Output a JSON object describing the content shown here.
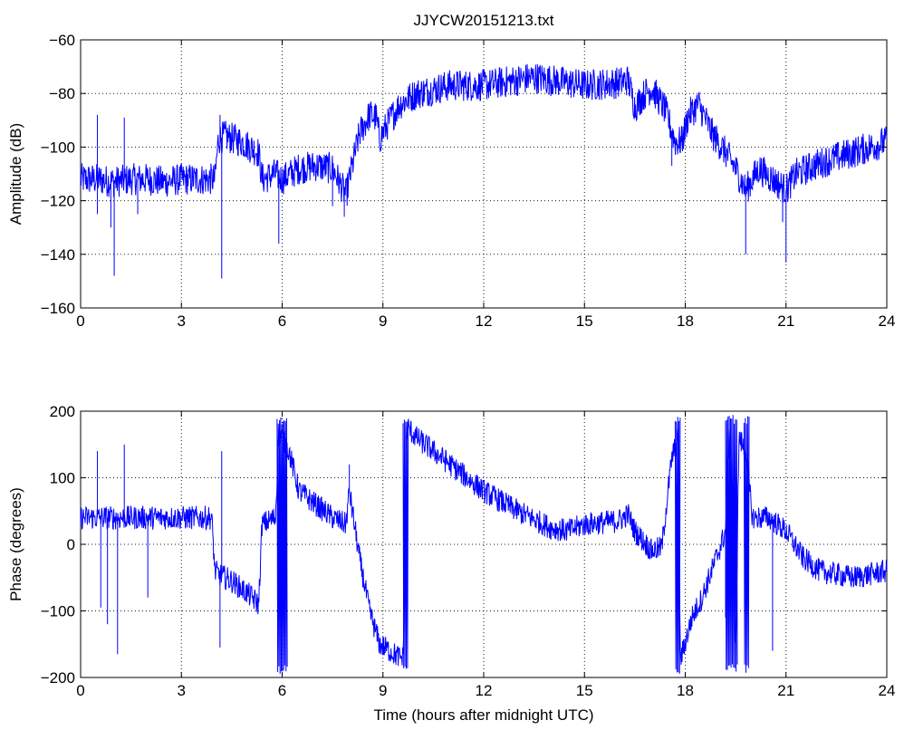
{
  "figure_title": "JJYCW20151213.txt",
  "colors": {
    "series": "#0000ff",
    "axes": "#000000",
    "background": "#ffffff"
  },
  "chart_data": [
    {
      "type": "line",
      "title": "JJYCW20151213.txt",
      "xlabel": "",
      "ylabel": "Amplitude (dB)",
      "xlim": [
        0,
        24
      ],
      "ylim": [
        -160,
        -60
      ],
      "xticks": [
        0,
        3,
        6,
        9,
        12,
        15,
        18,
        21,
        24
      ],
      "yticks": [
        -160,
        -140,
        -120,
        -100,
        -80,
        -60
      ],
      "grid": true,
      "noise_band": 6,
      "x": [
        0,
        0.5,
        1,
        1.5,
        2,
        2.5,
        3,
        3.5,
        4.0,
        4.1,
        4.3,
        4.8,
        5.3,
        5.4,
        5.8,
        6.0,
        6.5,
        7.0,
        7.5,
        7.9,
        8.0,
        8.3,
        8.6,
        8.8,
        8.9,
        9.2,
        9.5,
        10,
        11,
        12,
        13,
        13.5,
        14,
        15,
        16,
        16.3,
        16.5,
        16.8,
        17.0,
        17.4,
        17.7,
        17.9,
        18.1,
        18.4,
        18.8,
        19.2,
        19.5,
        19.8,
        20.2,
        20.6,
        21.0,
        21.3,
        22,
        23,
        24
      ],
      "values": [
        -112,
        -112,
        -113,
        -112,
        -112,
        -113,
        -112,
        -112,
        -112,
        -97,
        -96,
        -98,
        -102,
        -112,
        -110,
        -112,
        -108,
        -107,
        -108,
        -118,
        -112,
        -95,
        -88,
        -89,
        -97,
        -90,
        -84,
        -80,
        -77,
        -77,
        -75,
        -74,
        -75,
        -77,
        -76,
        -75,
        -85,
        -80,
        -78,
        -86,
        -98,
        -98,
        -88,
        -84,
        -95,
        -102,
        -108,
        -116,
        -108,
        -112,
        -116,
        -110,
        -106,
        -102,
        -98
      ],
      "spikes": [
        {
          "x": 0.5,
          "y": -88
        },
        {
          "x": 0.5,
          "y": -125
        },
        {
          "x": 1.0,
          "y": -148
        },
        {
          "x": 0.9,
          "y": -130
        },
        {
          "x": 1.3,
          "y": -89
        },
        {
          "x": 1.7,
          "y": -125
        },
        {
          "x": 4.15,
          "y": -88
        },
        {
          "x": 4.2,
          "y": -149
        },
        {
          "x": 5.9,
          "y": -136
        },
        {
          "x": 7.85,
          "y": -126
        },
        {
          "x": 7.5,
          "y": -122
        },
        {
          "x": 19.8,
          "y": -140
        },
        {
          "x": 21.0,
          "y": -143
        },
        {
          "x": 20.9,
          "y": -128
        },
        {
          "x": 17.6,
          "y": -107
        }
      ]
    },
    {
      "type": "line",
      "title": "",
      "xlabel": "Time (hours after midnight UTC)",
      "ylabel": "Phase (degrees)",
      "xlim": [
        0,
        24
      ],
      "ylim": [
        -200,
        200
      ],
      "xticks": [
        0,
        3,
        6,
        9,
        12,
        15,
        18,
        21,
        24
      ],
      "yticks": [
        -200,
        -100,
        0,
        100,
        200
      ],
      "grid": true,
      "noise_band": 18,
      "x": [
        0,
        1,
        2,
        3,
        3.9,
        4.0,
        4.1,
        4.5,
        5.0,
        5.3,
        5.4,
        5.8,
        5.9,
        6.2,
        6.5,
        7.0,
        7.5,
        7.9,
        8.0,
        8.3,
        8.6,
        8.9,
        9.2,
        9.5,
        9.6,
        9.7,
        9.75,
        10,
        11,
        12,
        13,
        14,
        14.5,
        15,
        16,
        16.3,
        16.5,
        17.0,
        17.3,
        17.6,
        17.8,
        17.85,
        18.2,
        18.5,
        19.0,
        19.2,
        19.3,
        19.5,
        19.6,
        19.8,
        20.0,
        20.5,
        21.0,
        21.5,
        22,
        23,
        24
      ],
      "values": [
        40,
        40,
        40,
        40,
        40,
        -40,
        -45,
        -55,
        -75,
        -90,
        30,
        40,
        170,
        140,
        80,
        60,
        40,
        30,
        80,
        -20,
        -100,
        -150,
        -160,
        -170,
        -170,
        170,
        175,
        160,
        120,
        80,
        50,
        25,
        20,
        30,
        35,
        45,
        20,
        -10,
        -5,
        130,
        160,
        -175,
        -110,
        -80,
        -10,
        20,
        170,
        -170,
        160,
        140,
        40,
        40,
        20,
        -20,
        -40,
        -50,
        -40
      ],
      "spikes": [
        {
          "x": 0.5,
          "y": 140
        },
        {
          "x": 0.8,
          "y": -120
        },
        {
          "x": 1.1,
          "y": -165
        },
        {
          "x": 1.3,
          "y": 150
        },
        {
          "x": 0.6,
          "y": -95
        },
        {
          "x": 4.2,
          "y": 140
        },
        {
          "x": 4.15,
          "y": -155
        },
        {
          "x": 2.0,
          "y": -80
        },
        {
          "x": 20.6,
          "y": -160
        },
        {
          "x": 19.2,
          "y": -110
        },
        {
          "x": 8.0,
          "y": 120
        }
      ],
      "wrap_bands": [
        {
          "x0": 5.85,
          "x1": 6.15
        },
        {
          "x0": 9.6,
          "x1": 9.75
        },
        {
          "x0": 17.7,
          "x1": 17.85
        },
        {
          "x0": 19.2,
          "x1": 19.55
        },
        {
          "x0": 19.75,
          "x1": 19.9
        }
      ]
    }
  ]
}
